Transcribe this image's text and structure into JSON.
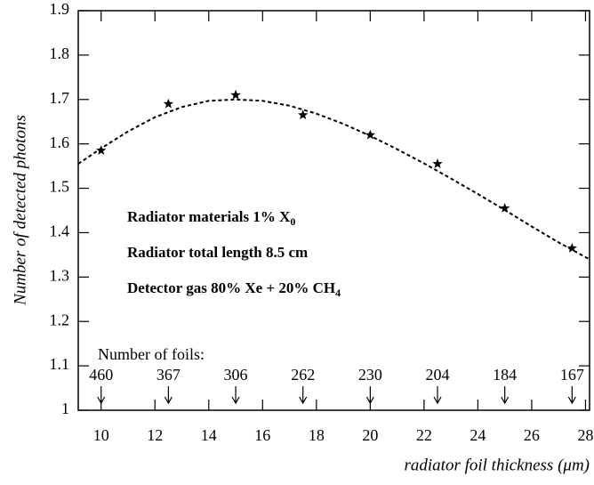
{
  "chart_data": {
    "type": "scatter",
    "x_label": "radiator foil thickness (μm)",
    "y_label": "Number of detected photons",
    "xlim": [
      9.15,
      28.15
    ],
    "ylim": [
      1,
      1.9
    ],
    "xticks": [
      10,
      12,
      14,
      16,
      18,
      20,
      22,
      24,
      26,
      28
    ],
    "yticks": [
      1,
      1.1,
      1.2,
      1.3,
      1.4,
      1.5,
      1.6,
      1.7,
      1.8,
      1.9
    ],
    "series": [
      {
        "marker": "star",
        "color": "#000000",
        "x": [
          10,
          12.5,
          15,
          17.5,
          20,
          22.5,
          25,
          27.5
        ],
        "values": [
          1.585,
          1.69,
          1.71,
          1.665,
          1.62,
          1.555,
          1.455,
          1.365
        ]
      },
      {
        "line": "dashed",
        "color": "#000000",
        "x": [
          9.15,
          10,
          11,
          12,
          13,
          14,
          15,
          16,
          17,
          18,
          19,
          20,
          21,
          22,
          23,
          24,
          25,
          26,
          27,
          28.15
        ],
        "values": [
          1.555,
          1.59,
          1.628,
          1.66,
          1.683,
          1.697,
          1.7,
          1.697,
          1.686,
          1.668,
          1.645,
          1.618,
          1.588,
          1.556,
          1.522,
          1.487,
          1.451,
          1.414,
          1.378,
          1.34
        ]
      }
    ],
    "annotations": [
      {
        "text": "Radiator materials  1% X",
        "sub": "0"
      },
      {
        "text": "Radiator total length  8.5 cm"
      },
      {
        "text": "Detector gas  80% Xe + 20% CH",
        "sub": "4"
      }
    ],
    "foils": {
      "label": "Number of foils:",
      "counts": [
        460,
        367,
        306,
        262,
        230,
        204,
        184,
        167
      ]
    }
  }
}
